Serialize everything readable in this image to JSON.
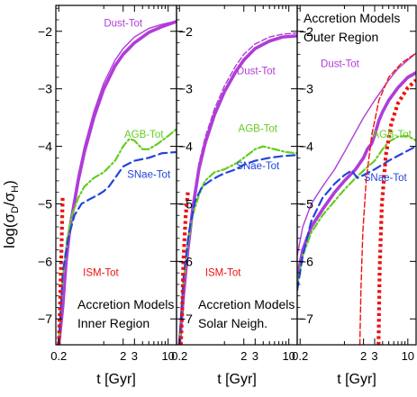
{
  "figure": {
    "ylabel_main": "log(σ",
    "ylabel_sub1": "D",
    "ylabel_mid": "/σ",
    "ylabel_sub2": "H",
    "ylabel_close": ")"
  },
  "chart_data": [
    {
      "type": "line",
      "panel": "inner",
      "annotation": [
        "Accretion Models",
        "Inner Region"
      ],
      "annotation_position": "bottom-right",
      "xlabel": "t [Gyr]",
      "ylabel": "log(σD/σH)",
      "xscale": "log",
      "xlim": [
        0.18,
        13.5
      ],
      "ylim": [
        -7.45,
        -1.55
      ],
      "xticks": [
        0.2,
        1,
        2,
        3,
        4,
        5,
        6,
        7,
        8,
        9,
        10
      ],
      "xtick_labels": [
        "0.2",
        "",
        "2",
        "3",
        "",
        "",
        "",
        "",
        "",
        "",
        "10"
      ],
      "yticks": [
        -7,
        -6,
        -5,
        -4,
        -3,
        -2
      ],
      "ytick_labels": [
        "−7",
        "−6",
        "−5",
        "−4",
        "−3",
        "−2"
      ],
      "series": [
        {
          "name": "Dust-Tot",
          "color": "#b03cd8",
          "style": "thick-solid",
          "x": [
            0.2,
            0.23,
            0.26,
            0.3,
            0.4,
            0.5,
            0.7,
            1,
            1.5,
            2,
            3,
            5,
            8,
            13.5
          ],
          "y": [
            -7.45,
            -6.8,
            -6.0,
            -5.4,
            -4.6,
            -4.1,
            -3.5,
            -3.0,
            -2.6,
            -2.4,
            -2.2,
            -2.02,
            -1.92,
            -1.83
          ]
        },
        {
          "name": "Dust-Tot",
          "color": "#b03cd8",
          "style": "thin-solid",
          "x": [
            0.2,
            0.23,
            0.26,
            0.3,
            0.4,
            0.5,
            0.7,
            1,
            1.5,
            2,
            3,
            5,
            8,
            13.5
          ],
          "y": [
            -7.45,
            -6.7,
            -5.9,
            -5.3,
            -4.5,
            -4.0,
            -3.4,
            -2.9,
            -2.5,
            -2.3,
            -2.1,
            -1.95,
            -1.88,
            -1.82
          ]
        },
        {
          "name": "AGB-Tot",
          "color": "#66cc22",
          "style": "dash-dot",
          "x": [
            0.2,
            0.23,
            0.27,
            0.32,
            0.4,
            0.5,
            0.7,
            1,
            1.5,
            2,
            2.5,
            3,
            4,
            5,
            7,
            10,
            13.5
          ],
          "y": [
            -7.45,
            -6.3,
            -5.6,
            -5.2,
            -4.9,
            -4.7,
            -4.55,
            -4.45,
            -4.25,
            -4.0,
            -3.87,
            -3.9,
            -4.05,
            -4.05,
            -3.95,
            -3.82,
            -3.7
          ]
        },
        {
          "name": "SNae-Tot",
          "color": "#2244dd",
          "style": "dashed",
          "x": [
            0.2,
            0.23,
            0.28,
            0.35,
            0.45,
            0.6,
            0.8,
            1,
            1.2,
            1.5,
            2,
            3,
            5,
            8,
            13.5
          ],
          "y": [
            -7.45,
            -6.2,
            -5.6,
            -5.2,
            -5.0,
            -4.92,
            -4.85,
            -4.78,
            -4.7,
            -4.55,
            -4.35,
            -4.25,
            -4.2,
            -4.12,
            -4.1
          ]
        },
        {
          "name": "ISM-Tot",
          "color": "#ee1111",
          "style": "dotted",
          "x": [
            0.2,
            0.21,
            0.22,
            0.23
          ],
          "y": [
            -7.45,
            -6.7,
            -5.8,
            -4.85
          ]
        }
      ],
      "labels": [
        {
          "text": "Dust-Tot",
          "color": "#b03cd8",
          "at": [
            2.0,
            -1.92
          ]
        },
        {
          "text": "AGB-Tot",
          "color": "#66cc22",
          "at": [
            4.2,
            -3.85
          ]
        },
        {
          "text": "SNae-Tot",
          "color": "#2244dd",
          "at": [
            5.0,
            -4.55
          ]
        },
        {
          "text": "ISM-Tot",
          "color": "#ee1111",
          "at": [
            0.9,
            -6.25
          ]
        }
      ]
    },
    {
      "type": "line",
      "panel": "solar",
      "annotation": [
        "Accretion Models",
        "Solar Neigh."
      ],
      "annotation_position": "bottom-right",
      "xlabel": "t [Gyr]",
      "xscale": "log",
      "xlim": [
        0.18,
        13.5
      ],
      "ylim": [
        -7.45,
        -1.55
      ],
      "xticks": [
        0.2,
        1,
        2,
        3,
        4,
        5,
        6,
        7,
        8,
        9,
        10
      ],
      "xtick_labels": [
        "0.2",
        "",
        "2",
        "3",
        "",
        "",
        "",
        "",
        "",
        "",
        "10"
      ],
      "yticks": [
        -7,
        -6,
        -5,
        -4,
        -3,
        -2
      ],
      "ytick_labels": [
        "−7",
        "−6",
        "−5",
        "−4",
        "−3",
        "−2"
      ],
      "series": [
        {
          "name": "Dust-Tot",
          "color": "#b03cd8",
          "style": "thick-solid",
          "x": [
            0.2,
            0.23,
            0.27,
            0.32,
            0.4,
            0.5,
            0.7,
            1,
            1.5,
            2,
            3,
            5,
            8,
            13.5
          ],
          "y": [
            -7.45,
            -6.6,
            -5.8,
            -5.1,
            -4.4,
            -3.95,
            -3.45,
            -3.05,
            -2.7,
            -2.5,
            -2.3,
            -2.17,
            -2.1,
            -2.08
          ]
        },
        {
          "name": "Dust-Tot",
          "color": "#b03cd8",
          "style": "thin-dashed",
          "x": [
            0.2,
            0.23,
            0.27,
            0.32,
            0.4,
            0.5,
            0.7,
            1,
            1.5,
            2,
            3,
            5,
            8,
            13.5
          ],
          "y": [
            -7.45,
            -6.5,
            -5.7,
            -5.0,
            -4.3,
            -3.85,
            -3.35,
            -2.95,
            -2.6,
            -2.4,
            -2.22,
            -2.1,
            -2.05,
            -2.03
          ]
        },
        {
          "name": "AGB-Tot",
          "color": "#66cc22",
          "style": "dash-dot",
          "x": [
            0.2,
            0.23,
            0.27,
            0.32,
            0.4,
            0.5,
            0.7,
            1,
            1.5,
            2,
            3,
            4,
            6,
            9,
            13.5
          ],
          "y": [
            -7.45,
            -6.4,
            -5.7,
            -5.2,
            -4.85,
            -4.6,
            -4.45,
            -4.4,
            -4.3,
            -4.2,
            -4.05,
            -4.0,
            -4.05,
            -4.1,
            -4.12
          ]
        },
        {
          "name": "SNae-Tot",
          "color": "#2244dd",
          "style": "dashed",
          "x": [
            0.2,
            0.23,
            0.28,
            0.35,
            0.45,
            0.6,
            0.8,
            1,
            1.5,
            2,
            3,
            5,
            8,
            13.5
          ],
          "y": [
            -7.45,
            -6.3,
            -5.5,
            -4.95,
            -4.7,
            -4.6,
            -4.52,
            -4.47,
            -4.4,
            -4.32,
            -4.25,
            -4.2,
            -4.17,
            -4.15
          ]
        },
        {
          "name": "ISM-Tot",
          "color": "#ee1111",
          "style": "dotted",
          "x": [
            0.21,
            0.22,
            0.23,
            0.25,
            0.27
          ],
          "y": [
            -7.45,
            -6.9,
            -6.0,
            -5.2,
            -4.8
          ]
        }
      ],
      "labels": [
        {
          "text": "Dust-Tot",
          "color": "#b03cd8",
          "at": [
            3.1,
            -2.75
          ]
        },
        {
          "text": "AGB-Tot",
          "color": "#66cc22",
          "at": [
            3.3,
            -3.75
          ]
        },
        {
          "text": "SNae-Tot",
          "color": "#2244dd",
          "at": [
            3.3,
            -4.4
          ]
        },
        {
          "text": "ISM-Tot",
          "color": "#ee1111",
          "at": [
            0.95,
            -6.25
          ]
        }
      ]
    },
    {
      "type": "line",
      "panel": "outer",
      "annotation": [
        "Accretion Models",
        "Outer Region"
      ],
      "annotation_position": "top-left",
      "xlabel": "t [Gyr]",
      "xscale": "log",
      "xlim": [
        0.18,
        13.5
      ],
      "ylim": [
        -7.45,
        -1.55
      ],
      "xticks": [
        0.2,
        1,
        2,
        3,
        4,
        5,
        6,
        7,
        8,
        9,
        10
      ],
      "xtick_labels": [
        "0.2",
        "",
        "2",
        "3",
        "",
        "",
        "",
        "",
        "",
        "",
        "10"
      ],
      "yticks": [
        -7,
        -6,
        -5,
        -4,
        -3,
        -2
      ],
      "ytick_labels": [
        "−7",
        "−6",
        "−5",
        "−4",
        "−3",
        "−2"
      ],
      "series": [
        {
          "name": "Dust-Tot",
          "color": "#b03cd8",
          "style": "thin-solid",
          "x": [
            0.18,
            0.22,
            0.3,
            0.45,
            0.7,
            1,
            1.5,
            2,
            3,
            4,
            5,
            7,
            10,
            13.5
          ],
          "y": [
            -5.9,
            -5.4,
            -5.0,
            -4.7,
            -4.4,
            -4.1,
            -3.75,
            -3.5,
            -3.2,
            -3.0,
            -2.85,
            -2.65,
            -2.5,
            -2.38
          ]
        },
        {
          "name": "Dust-Tot",
          "color": "#b03cd8",
          "style": "thick-solid",
          "x": [
            0.18,
            0.22,
            0.3,
            0.45,
            0.7,
            1,
            1.5,
            2,
            2.3,
            2.7,
            3,
            3.5,
            4,
            5,
            7,
            10,
            13.5
          ],
          "y": [
            -6.3,
            -5.8,
            -5.4,
            -5.1,
            -4.8,
            -4.6,
            -4.4,
            -4.2,
            -4.05,
            -3.95,
            -3.8,
            -3.55,
            -3.4,
            -3.2,
            -2.98,
            -2.8,
            -2.72
          ]
        },
        {
          "name": "AGB-Tot",
          "color": "#66cc22",
          "style": "dash-dot",
          "x": [
            0.18,
            0.22,
            0.3,
            0.45,
            0.7,
            1,
            1.5,
            2,
            3,
            4,
            5,
            7,
            10,
            13.5
          ],
          "y": [
            -6.4,
            -5.9,
            -5.5,
            -5.2,
            -4.95,
            -4.75,
            -4.55,
            -4.42,
            -4.25,
            -4.05,
            -3.92,
            -3.83,
            -3.82,
            -3.9
          ]
        },
        {
          "name": "SNae-Tot",
          "color": "#2244dd",
          "style": "dashed",
          "x": [
            0.18,
            0.22,
            0.3,
            0.45,
            0.7,
            1,
            1.3,
            1.6,
            2,
            3,
            5,
            8,
            13.5
          ],
          "y": [
            -6.5,
            -5.9,
            -5.3,
            -4.9,
            -4.65,
            -4.5,
            -4.42,
            -4.55,
            -4.5,
            -4.4,
            -4.25,
            -4.13,
            -4.0
          ]
        },
        {
          "name": "ISM-Tot",
          "color": "#ee1111",
          "style": "thin-dashed",
          "x": [
            1.75,
            1.82,
            1.95,
            2.2,
            2.7,
            3.5,
            5,
            8,
            13.5
          ],
          "y": [
            -7.45,
            -6.5,
            -5.5,
            -4.6,
            -3.8,
            -3.2,
            -2.8,
            -2.55,
            -2.38
          ]
        },
        {
          "name": "ISM-Tot",
          "color": "#ee1111",
          "style": "dotted",
          "x": [
            3.45,
            3.6,
            3.9,
            4.5,
            5.5,
            7,
            10,
            13.5
          ],
          "y": [
            -7.45,
            -6.1,
            -5.0,
            -4.15,
            -3.6,
            -3.25,
            -2.98,
            -2.85
          ]
        }
      ],
      "labels": [
        {
          "text": "Dust-Tot",
          "color": "#b03cd8",
          "at": [
            0.85,
            -2.62
          ]
        },
        {
          "text": "AGB-Tot",
          "color": "#66cc22",
          "at": [
            5.6,
            -3.85
          ]
        },
        {
          "text": "SNae-Tot",
          "color": "#2244dd",
          "at": [
            4.4,
            -4.6
          ]
        }
      ]
    }
  ]
}
